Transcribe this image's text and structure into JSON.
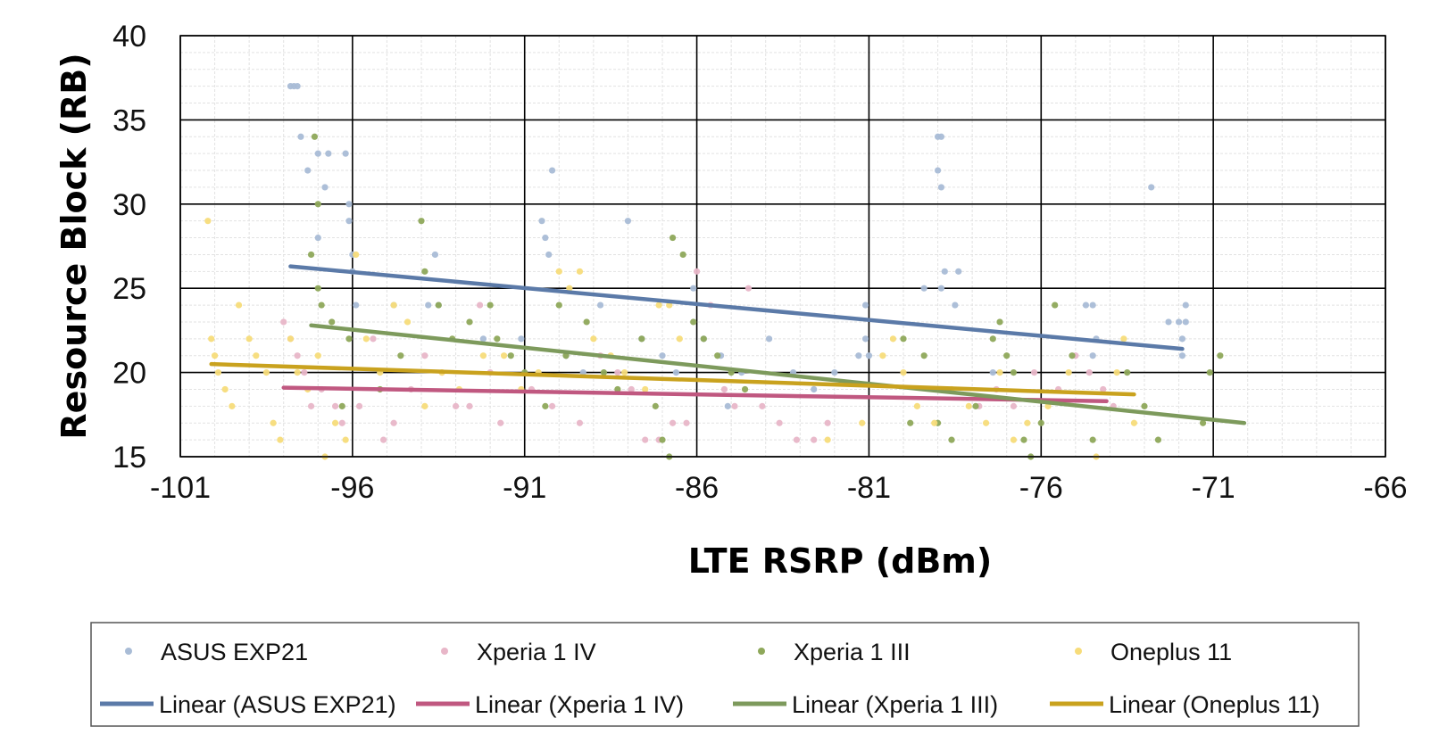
{
  "chart_data": {
    "type": "scatter",
    "title": "",
    "xlabel": "LTE RSRP (dBm)",
    "ylabel": "Resource Block (RB)",
    "xlim": [
      -101,
      -66
    ],
    "ylim": [
      15,
      40
    ],
    "xticks": [
      -101,
      -96,
      -91,
      -86,
      -81,
      -76,
      -71,
      -66
    ],
    "yticks": [
      15,
      20,
      25,
      30,
      35,
      40
    ],
    "grid": true,
    "legend_position": "bottom",
    "series": [
      {
        "name": "ASUS EXP21",
        "color": "#a9bcd6",
        "points": [
          [
            -97.8,
            37
          ],
          [
            -97.7,
            37
          ],
          [
            -97.6,
            37
          ],
          [
            -97.5,
            34
          ],
          [
            -97.3,
            32
          ],
          [
            -97.0,
            33
          ],
          [
            -96.8,
            31
          ],
          [
            -96.7,
            33
          ],
          [
            -96.2,
            33
          ],
          [
            -96.1,
            30
          ],
          [
            -96.1,
            29
          ],
          [
            -96.0,
            27
          ],
          [
            -96.0,
            26
          ],
          [
            -95.9,
            24
          ],
          [
            -97.0,
            28
          ],
          [
            -94.8,
            24
          ],
          [
            -93.8,
            24
          ],
          [
            -93.6,
            27
          ],
          [
            -93.5,
            24
          ],
          [
            -92.2,
            22
          ],
          [
            -91.1,
            22
          ],
          [
            -90.5,
            29
          ],
          [
            -90.4,
            28
          ],
          [
            -90.3,
            27
          ],
          [
            -90.2,
            32
          ],
          [
            -89.8,
            21
          ],
          [
            -89.3,
            20
          ],
          [
            -88.8,
            24
          ],
          [
            -88.0,
            29
          ],
          [
            -87.6,
            22
          ],
          [
            -87.0,
            21
          ],
          [
            -86.6,
            20
          ],
          [
            -86.1,
            25
          ],
          [
            -85.8,
            22
          ],
          [
            -85.3,
            21
          ],
          [
            -85.1,
            18
          ],
          [
            -84.7,
            20
          ],
          [
            -83.9,
            22
          ],
          [
            -83.2,
            20
          ],
          [
            -82.6,
            19
          ],
          [
            -82.0,
            20
          ],
          [
            -81.3,
            21
          ],
          [
            -81.1,
            24
          ],
          [
            -81.1,
            22
          ],
          [
            -81.0,
            21
          ],
          [
            -79.4,
            25
          ],
          [
            -79.0,
            34
          ],
          [
            -78.9,
            34
          ],
          [
            -79.0,
            32
          ],
          [
            -78.9,
            31
          ],
          [
            -78.8,
            26
          ],
          [
            -78.9,
            25
          ],
          [
            -78.4,
            26
          ],
          [
            -78.5,
            24
          ],
          [
            -77.4,
            20
          ],
          [
            -74.7,
            24
          ],
          [
            -74.5,
            24
          ],
          [
            -74.4,
            22
          ],
          [
            -74.5,
            21
          ],
          [
            -72.8,
            31
          ],
          [
            -72.3,
            23
          ],
          [
            -72.0,
            23
          ],
          [
            -71.8,
            23
          ],
          [
            -71.9,
            22
          ],
          [
            -71.9,
            21
          ],
          [
            -71.8,
            24
          ]
        ]
      },
      {
        "name": "Xperia 1 IV",
        "color": "#e8b6c8",
        "points": [
          [
            -98.0,
            23
          ],
          [
            -97.8,
            22
          ],
          [
            -97.6,
            21
          ],
          [
            -97.4,
            20
          ],
          [
            -97.2,
            18
          ],
          [
            -96.9,
            19
          ],
          [
            -96.5,
            18
          ],
          [
            -96.3,
            17
          ],
          [
            -95.8,
            18
          ],
          [
            -95.4,
            22
          ],
          [
            -95.1,
            16
          ],
          [
            -94.8,
            17
          ],
          [
            -94.3,
            19
          ],
          [
            -93.9,
            21
          ],
          [
            -93.4,
            20
          ],
          [
            -93.0,
            18
          ],
          [
            -92.6,
            18
          ],
          [
            -92.3,
            24
          ],
          [
            -92.0,
            20
          ],
          [
            -91.7,
            17
          ],
          [
            -90.8,
            19
          ],
          [
            -90.2,
            18
          ],
          [
            -89.4,
            17
          ],
          [
            -88.8,
            21
          ],
          [
            -88.3,
            20
          ],
          [
            -87.9,
            19
          ],
          [
            -87.5,
            16
          ],
          [
            -87.1,
            16
          ],
          [
            -86.7,
            17
          ],
          [
            -86.3,
            17
          ],
          [
            -86.0,
            26
          ],
          [
            -85.6,
            24
          ],
          [
            -85.2,
            19
          ],
          [
            -84.9,
            18
          ],
          [
            -84.5,
            25
          ],
          [
            -84.1,
            18
          ],
          [
            -83.6,
            17
          ],
          [
            -83.1,
            16
          ],
          [
            -82.6,
            16
          ],
          [
            -82.2,
            17
          ],
          [
            -77.8,
            18
          ],
          [
            -77.3,
            19
          ],
          [
            -76.8,
            18
          ],
          [
            -76.2,
            20
          ],
          [
            -75.5,
            19
          ],
          [
            -75.0,
            21
          ],
          [
            -74.6,
            20
          ],
          [
            -74.2,
            19
          ],
          [
            -73.9,
            18
          ]
        ]
      },
      {
        "name": "Xperia 1 III",
        "color": "#8ea85a",
        "points": [
          [
            -97.2,
            27
          ],
          [
            -97.1,
            34
          ],
          [
            -97.0,
            30
          ],
          [
            -97.0,
            25
          ],
          [
            -96.9,
            24
          ],
          [
            -96.6,
            23
          ],
          [
            -96.3,
            18
          ],
          [
            -96.1,
            22
          ],
          [
            -95.2,
            19
          ],
          [
            -94.6,
            21
          ],
          [
            -94.0,
            29
          ],
          [
            -93.9,
            26
          ],
          [
            -93.5,
            24
          ],
          [
            -93.1,
            22
          ],
          [
            -92.6,
            23
          ],
          [
            -92.0,
            24
          ],
          [
            -91.8,
            22
          ],
          [
            -91.4,
            21
          ],
          [
            -91.0,
            20
          ],
          [
            -90.4,
            18
          ],
          [
            -90.0,
            24
          ],
          [
            -89.8,
            21
          ],
          [
            -89.2,
            23
          ],
          [
            -88.7,
            20
          ],
          [
            -88.3,
            19
          ],
          [
            -87.6,
            22
          ],
          [
            -87.2,
            18
          ],
          [
            -87.0,
            16
          ],
          [
            -86.8,
            15
          ],
          [
            -86.7,
            28
          ],
          [
            -86.4,
            27
          ],
          [
            -86.1,
            23
          ],
          [
            -85.8,
            22
          ],
          [
            -85.4,
            21
          ],
          [
            -85.0,
            20
          ],
          [
            -84.6,
            19
          ],
          [
            -80.0,
            22
          ],
          [
            -79.8,
            17
          ],
          [
            -79.4,
            21
          ],
          [
            -79.0,
            17
          ],
          [
            -78.6,
            16
          ],
          [
            -77.9,
            18
          ],
          [
            -77.4,
            22
          ],
          [
            -77.2,
            23
          ],
          [
            -77.0,
            21
          ],
          [
            -76.8,
            20
          ],
          [
            -76.5,
            16
          ],
          [
            -76.3,
            15
          ],
          [
            -76.0,
            17
          ],
          [
            -75.6,
            24
          ],
          [
            -75.1,
            21
          ],
          [
            -74.5,
            16
          ],
          [
            -73.5,
            20
          ],
          [
            -73.0,
            18
          ],
          [
            -72.6,
            16
          ],
          [
            -71.1,
            20
          ],
          [
            -70.8,
            21
          ],
          [
            -71.3,
            17
          ]
        ]
      },
      {
        "name": "Oneplus 11",
        "color": "#f7dc7a",
        "points": [
          [
            -100.2,
            29
          ],
          [
            -100.1,
            22
          ],
          [
            -100.0,
            21
          ],
          [
            -99.9,
            20
          ],
          [
            -99.7,
            19
          ],
          [
            -99.5,
            18
          ],
          [
            -99.3,
            24
          ],
          [
            -99.0,
            22
          ],
          [
            -98.8,
            21
          ],
          [
            -98.5,
            20
          ],
          [
            -98.3,
            17
          ],
          [
            -98.1,
            16
          ],
          [
            -97.8,
            22
          ],
          [
            -97.6,
            20
          ],
          [
            -97.3,
            19
          ],
          [
            -97.0,
            21
          ],
          [
            -96.8,
            15
          ],
          [
            -96.5,
            17
          ],
          [
            -96.2,
            16
          ],
          [
            -95.9,
            27
          ],
          [
            -95.6,
            22
          ],
          [
            -95.2,
            20
          ],
          [
            -94.8,
            24
          ],
          [
            -94.4,
            23
          ],
          [
            -93.9,
            18
          ],
          [
            -93.4,
            20
          ],
          [
            -92.9,
            19
          ],
          [
            -92.2,
            21
          ],
          [
            -91.6,
            21
          ],
          [
            -91.1,
            19
          ],
          [
            -90.6,
            20
          ],
          [
            -90.0,
            26
          ],
          [
            -89.7,
            25
          ],
          [
            -89.4,
            26
          ],
          [
            -89.0,
            22
          ],
          [
            -88.5,
            21
          ],
          [
            -88.1,
            20
          ],
          [
            -87.5,
            19
          ],
          [
            -87.1,
            24
          ],
          [
            -86.8,
            24
          ],
          [
            -86.5,
            22
          ],
          [
            -82.2,
            16
          ],
          [
            -81.2,
            17
          ],
          [
            -80.6,
            21
          ],
          [
            -80.3,
            22
          ],
          [
            -80.0,
            20
          ],
          [
            -79.6,
            18
          ],
          [
            -79.1,
            17
          ],
          [
            -78.6,
            19
          ],
          [
            -78.1,
            18
          ],
          [
            -77.6,
            17
          ],
          [
            -77.2,
            20
          ],
          [
            -76.8,
            16
          ],
          [
            -76.4,
            17
          ],
          [
            -75.8,
            18
          ],
          [
            -75.2,
            20
          ],
          [
            -74.4,
            15
          ],
          [
            -73.8,
            20
          ],
          [
            -73.6,
            22
          ],
          [
            -73.3,
            17
          ]
        ]
      }
    ],
    "trendlines": [
      {
        "name": "Linear (ASUS EXP21)",
        "color": "#5b7aa8",
        "from": [
          -97.8,
          26.3
        ],
        "to": [
          -71.9,
          21.4
        ]
      },
      {
        "name": "Linear (Xperia 1 IV)",
        "color": "#c05880",
        "from": [
          -98.0,
          19.1
        ],
        "to": [
          -74.1,
          18.3
        ]
      },
      {
        "name": "Linear (Xperia 1 III)",
        "color": "#7d9a5c",
        "from": [
          -97.2,
          22.8
        ],
        "to": [
          -70.1,
          17.0
        ]
      },
      {
        "name": "Linear (Oneplus 11)",
        "color": "#c9a21e",
        "from": [
          -100.1,
          20.5
        ],
        "to": [
          -73.3,
          18.7
        ]
      }
    ]
  },
  "legend": {
    "row1": [
      "ASUS EXP21",
      "Xperia 1 IV",
      "Xperia 1 III",
      "Oneplus 11"
    ],
    "row2": [
      "Linear (ASUS EXP21)",
      "Linear (Xperia 1 IV)",
      "Linear (Xperia 1 III)",
      "Linear (Oneplus 11)"
    ]
  }
}
